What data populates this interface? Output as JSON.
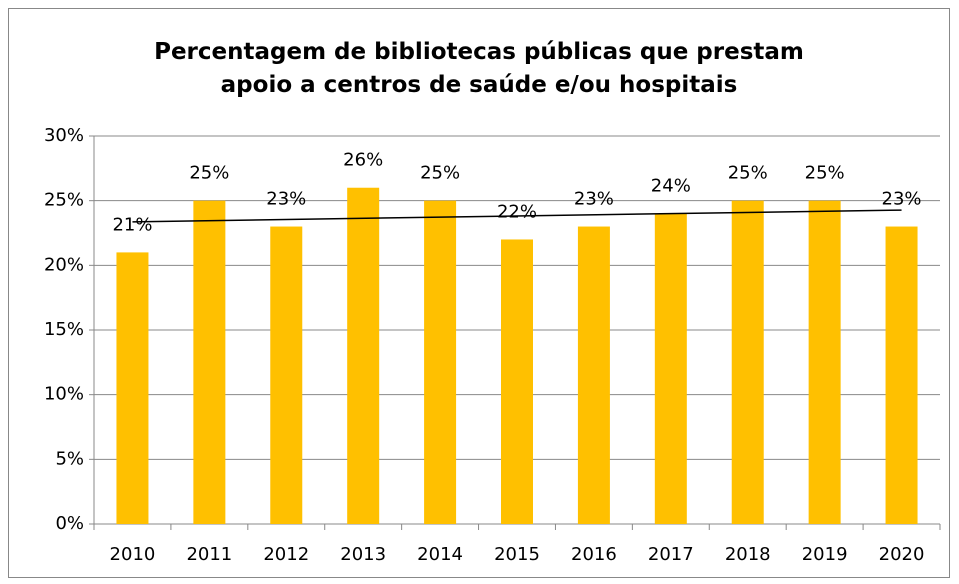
{
  "chart_data": {
    "type": "bar",
    "title": "Percentagem de bibliotecas públicas que prestam apoio a centros de saúde e/ou hospitais",
    "categories": [
      "2010",
      "2011",
      "2012",
      "2013",
      "2014",
      "2015",
      "2016",
      "2017",
      "2018",
      "2019",
      "2020"
    ],
    "values": [
      21,
      25,
      23,
      26,
      25,
      22,
      23,
      24,
      25,
      25,
      23
    ],
    "value_labels": [
      "21%",
      "25%",
      "23%",
      "26%",
      "25%",
      "22%",
      "23%",
      "24%",
      "25%",
      "25%",
      "23%"
    ],
    "color": "#ffc000",
    "ylim": [
      0,
      30
    ],
    "yticks": [
      {
        "value": 0,
        "label": "0%"
      },
      {
        "value": 5,
        "label": "5%"
      },
      {
        "value": 10,
        "label": "10%"
      },
      {
        "value": 15,
        "label": "15%"
      },
      {
        "value": 20,
        "label": "20%"
      },
      {
        "value": 25,
        "label": "25%"
      },
      {
        "value": 30,
        "label": "30%"
      }
    ],
    "grid": true,
    "trendline": "linear"
  }
}
